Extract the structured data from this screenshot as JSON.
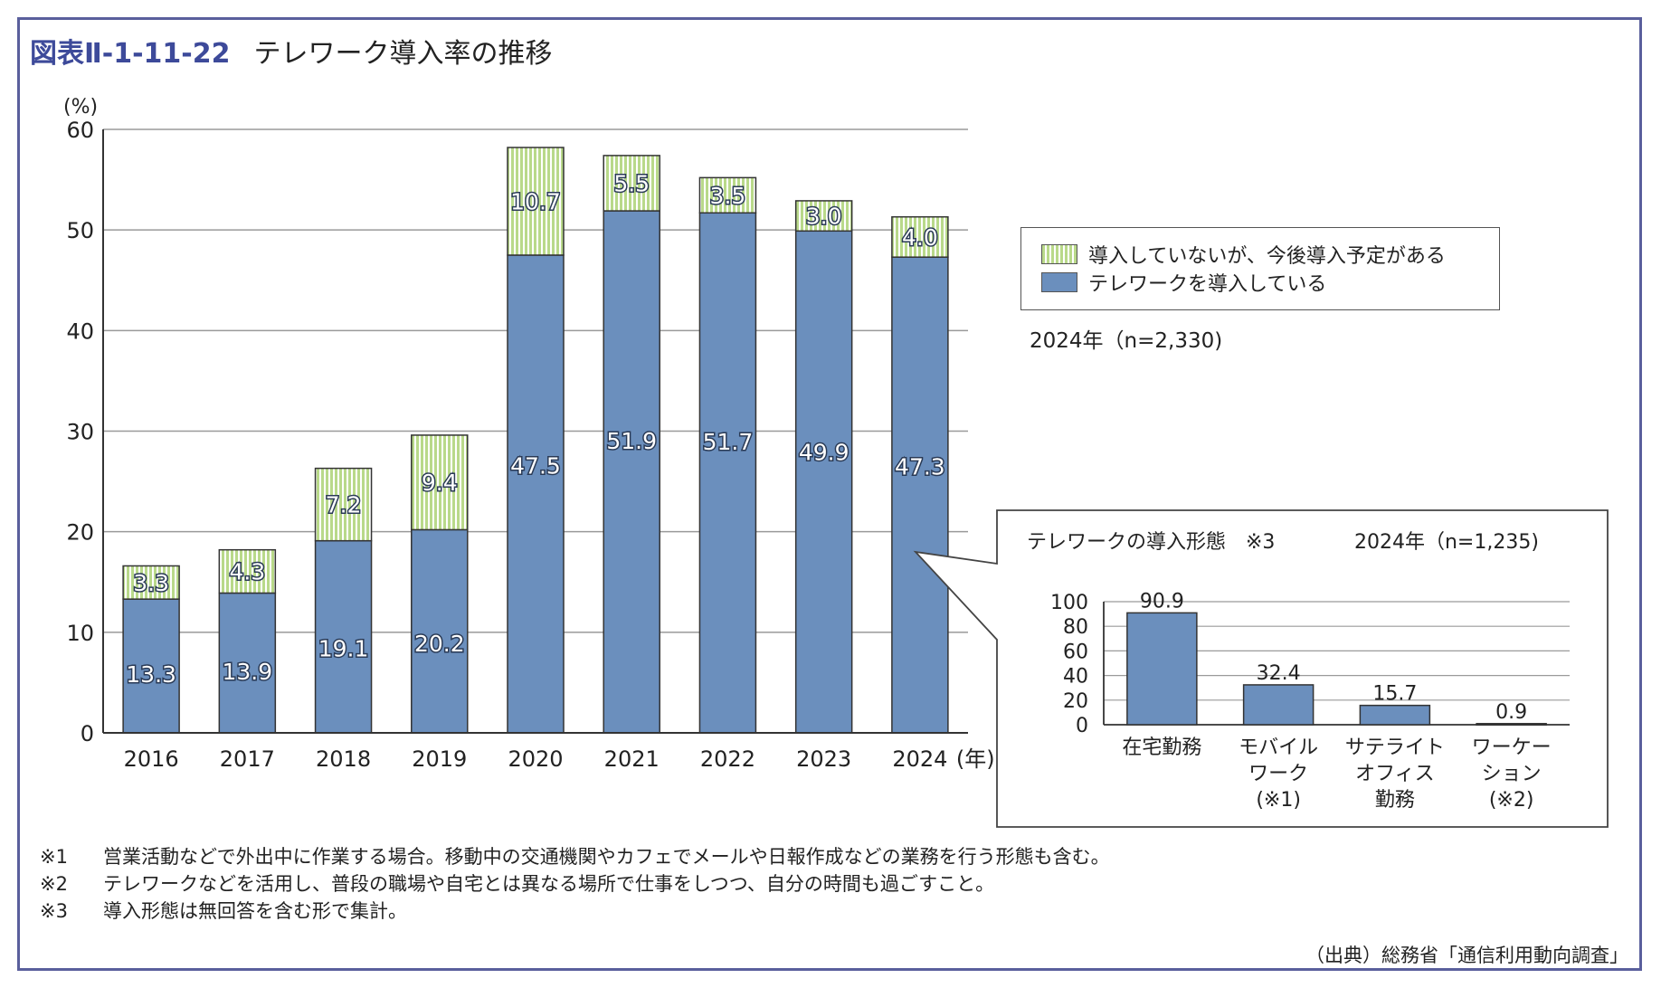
{
  "figure": {
    "number": "図表Ⅱ-1-11-22",
    "title": "テレワーク導入率の推移"
  },
  "legend": {
    "planned": "導入していないが、今後導入予定がある",
    "adopted": "テレワークを導入している"
  },
  "sample_note": "2024年（n=2,330)",
  "chart_data": [
    {
      "type": "bar",
      "stacked": true,
      "categories": [
        "2016",
        "2017",
        "2018",
        "2019",
        "2020",
        "2021",
        "2022",
        "2023",
        "2024"
      ],
      "x_unit": "(年)",
      "y_unit": "(%)",
      "ylim": [
        0,
        60
      ],
      "yticks": [
        0,
        10,
        20,
        30,
        40,
        50,
        60
      ],
      "grid": true,
      "legend_position": "right",
      "series": [
        {
          "name": "テレワークを導入している",
          "color": "#6b8fbd",
          "values": [
            13.3,
            13.9,
            19.1,
            20.2,
            47.5,
            51.9,
            51.7,
            49.9,
            47.3
          ]
        },
        {
          "name": "導入していないが、今後導入予定がある",
          "color": "#b9d98a",
          "values": [
            3.3,
            4.3,
            7.2,
            9.4,
            10.7,
            5.5,
            3.5,
            3.0,
            4.0
          ]
        }
      ]
    },
    {
      "type": "bar",
      "title": "テレワークの導入形態　※3",
      "subtitle": "2024年（n=1,235)",
      "categories": [
        [
          "在宅勤務"
        ],
        [
          "モバイル",
          "ワーク",
          "(※1)"
        ],
        [
          "サテライト",
          "オフィス",
          "勤務"
        ],
        [
          "ワーケー",
          "ション",
          "(※2)"
        ]
      ],
      "values": [
        90.9,
        32.4,
        15.7,
        0.9
      ],
      "color": "#6b8fbd",
      "ylim": [
        0,
        100
      ],
      "yticks": [
        0,
        20,
        40,
        60,
        80,
        100
      ],
      "grid": true
    }
  ],
  "notes": [
    {
      "mark": "※1",
      "text": "営業活動などで外出中に作業する場合。移動中の交通機関やカフェでメールや日報作成などの業務を行う形態も含む。"
    },
    {
      "mark": "※2",
      "text": "テレワークなどを活用し、普段の職場や自宅とは異なる場所で仕事をしつつ、自分の時間も過ごすこと。"
    },
    {
      "mark": "※3",
      "text": "導入形態は無回答を含む形で集計。"
    }
  ],
  "source": "（出典）総務省「通信利用動向調査」"
}
